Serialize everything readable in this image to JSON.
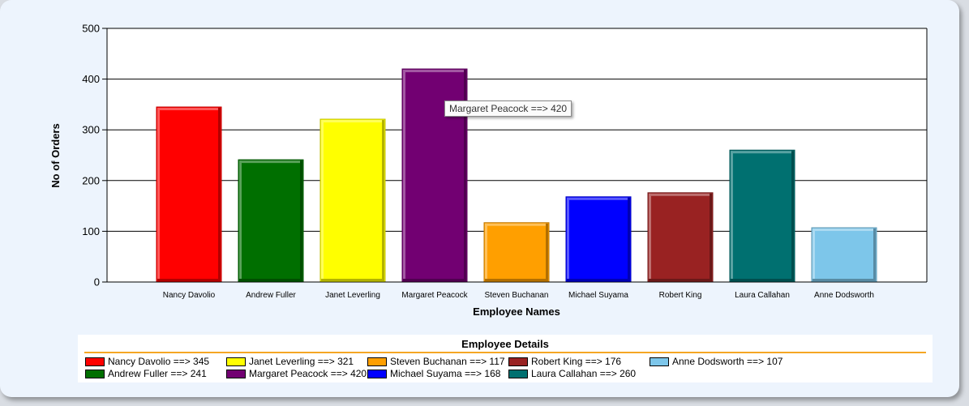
{
  "chart_data": {
    "type": "bar",
    "xlabel": "Employee Names",
    "ylabel": "No of Orders",
    "ylim": [
      0,
      500
    ],
    "yticks": [
      "0",
      "100",
      "200",
      "300",
      "400",
      "500"
    ],
    "grid": true,
    "categories": [
      "Nancy Davolio",
      "Andrew Fuller",
      "Janet Leverling",
      "Margaret Peacock",
      "Steven Buchanan",
      "Michael Suyama",
      "Robert King",
      "Laura Callahan",
      "Anne Dodsworth"
    ],
    "values": [
      345,
      241,
      321,
      420,
      117,
      168,
      176,
      260,
      107
    ],
    "colors": [
      "#ff0000",
      "#006f00",
      "#ffff00",
      "#720072",
      "#ff9f00",
      "#0000ff",
      "#992222",
      "#007070",
      "#7dc6ea"
    ]
  },
  "tooltip": {
    "text": "Margaret Peacock ==> 420"
  },
  "legend": {
    "title": "Employee Details",
    "placement": "bottom",
    "items": [
      {
        "label": "Nancy Davolio ==> 345",
        "color": "#ff0000"
      },
      {
        "label": "Andrew Fuller ==> 241",
        "color": "#006f00"
      },
      {
        "label": "Janet Leverling ==> 321",
        "color": "#ffff00"
      },
      {
        "label": "Margaret Peacock ==> 420",
        "color": "#720072"
      },
      {
        "label": "Steven Buchanan ==> 117",
        "color": "#ff9f00"
      },
      {
        "label": "Michael Suyama ==> 168",
        "color": "#0000ff"
      },
      {
        "label": "Robert King ==> 176",
        "color": "#992222"
      },
      {
        "label": "Laura Callahan ==> 260",
        "color": "#007070"
      },
      {
        "label": "Anne Dodsworth ==> 107",
        "color": "#7dc6ea"
      }
    ]
  }
}
